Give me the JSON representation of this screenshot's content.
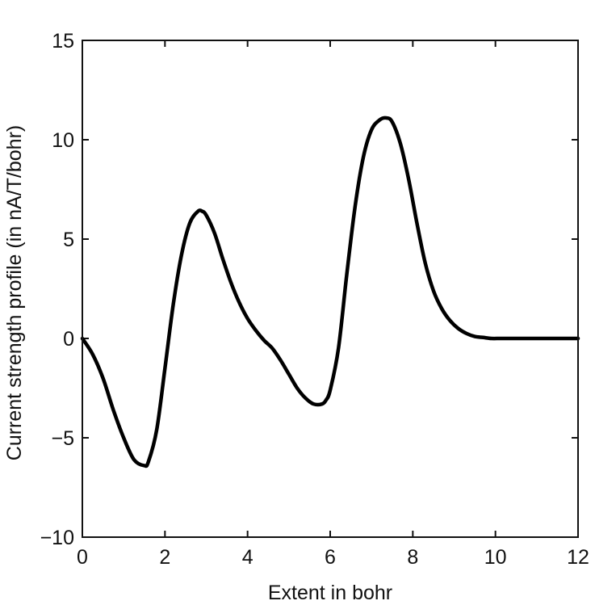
{
  "chart_data": {
    "type": "line",
    "title": "",
    "xlabel": "Extent in bohr",
    "ylabel": "Current strength profile (in nA/T/bohr)",
    "xlim": [
      0,
      12
    ],
    "ylim": [
      -10,
      15
    ],
    "xticks": [
      0,
      2,
      4,
      6,
      8,
      10,
      12
    ],
    "yticks": [
      -10,
      -5,
      0,
      5,
      10,
      15
    ],
    "xtick_labels": [
      "0",
      "2",
      "4",
      "6",
      "8",
      "10",
      "12"
    ],
    "ytick_labels": [
      "−10",
      "−5",
      "0",
      "5",
      "10",
      "15"
    ],
    "grid": false,
    "legend": "none",
    "series": [
      {
        "color": "#000000",
        "x": [
          0,
          0.25,
          0.5,
          0.75,
          1.0,
          1.25,
          1.5,
          1.6,
          1.8,
          2.0,
          2.2,
          2.4,
          2.6,
          2.8,
          2.9,
          3.0,
          3.2,
          3.4,
          3.6,
          3.8,
          4.0,
          4.2,
          4.4,
          4.6,
          4.8,
          5.0,
          5.2,
          5.4,
          5.6,
          5.8,
          5.9,
          6.0,
          6.2,
          6.4,
          6.6,
          6.8,
          7.0,
          7.2,
          7.35,
          7.5,
          7.7,
          7.9,
          8.1,
          8.3,
          8.5,
          8.7,
          8.9,
          9.1,
          9.3,
          9.5,
          9.7,
          9.9,
          10.1,
          10.3,
          10.5,
          11.0,
          11.5,
          12.0
        ],
        "y": [
          0,
          -0.8,
          -2.0,
          -3.6,
          -5.0,
          -6.1,
          -6.4,
          -6.2,
          -4.6,
          -1.5,
          1.7,
          4.2,
          5.8,
          6.4,
          6.4,
          6.2,
          5.3,
          4.0,
          2.8,
          1.8,
          1.0,
          0.4,
          -0.1,
          -0.5,
          -1.1,
          -1.8,
          -2.5,
          -3.0,
          -3.3,
          -3.3,
          -3.1,
          -2.6,
          -0.5,
          3.2,
          6.6,
          9.1,
          10.5,
          11.0,
          11.1,
          10.9,
          9.8,
          8.0,
          5.8,
          3.8,
          2.4,
          1.5,
          0.9,
          0.5,
          0.25,
          0.1,
          0.05,
          0.0,
          0.0,
          0.0,
          0.0,
          0.0,
          0.0,
          0.0
        ]
      }
    ]
  }
}
